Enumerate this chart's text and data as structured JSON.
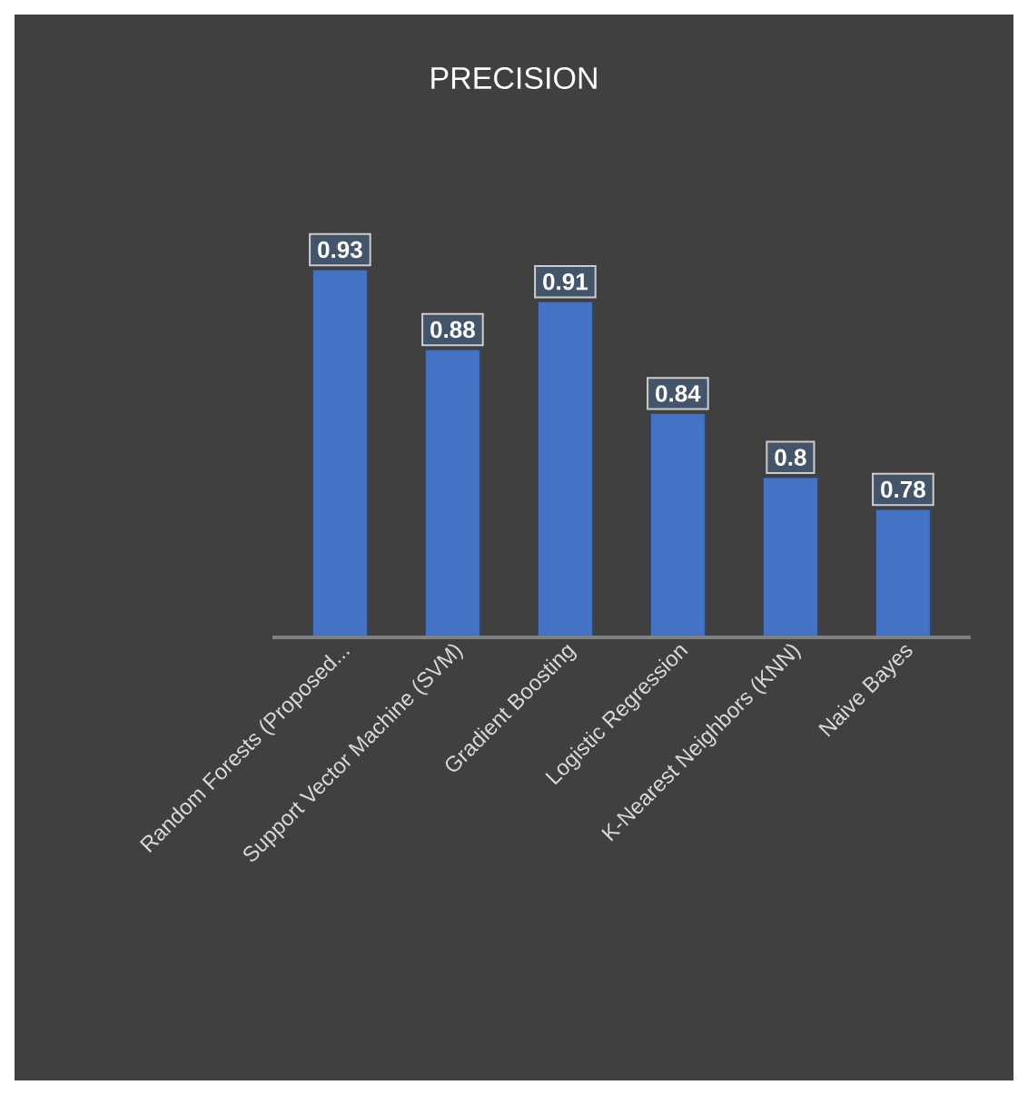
{
  "chart_data": {
    "type": "bar",
    "title": "PRECISION",
    "categories": [
      "Random Forests (Proposed...",
      "Support Vector Machine (SVM)",
      "Gradient Boosting",
      "Logistic Regression",
      "K-Nearest Neighbors (KNN)",
      "Naive Bayes"
    ],
    "values": [
      0.93,
      0.88,
      0.91,
      0.84,
      0.8,
      0.78
    ],
    "color": "#4472c4",
    "ylim": [
      0.7,
      0.95
    ],
    "tick_labels": "x",
    "data_labels": true
  }
}
